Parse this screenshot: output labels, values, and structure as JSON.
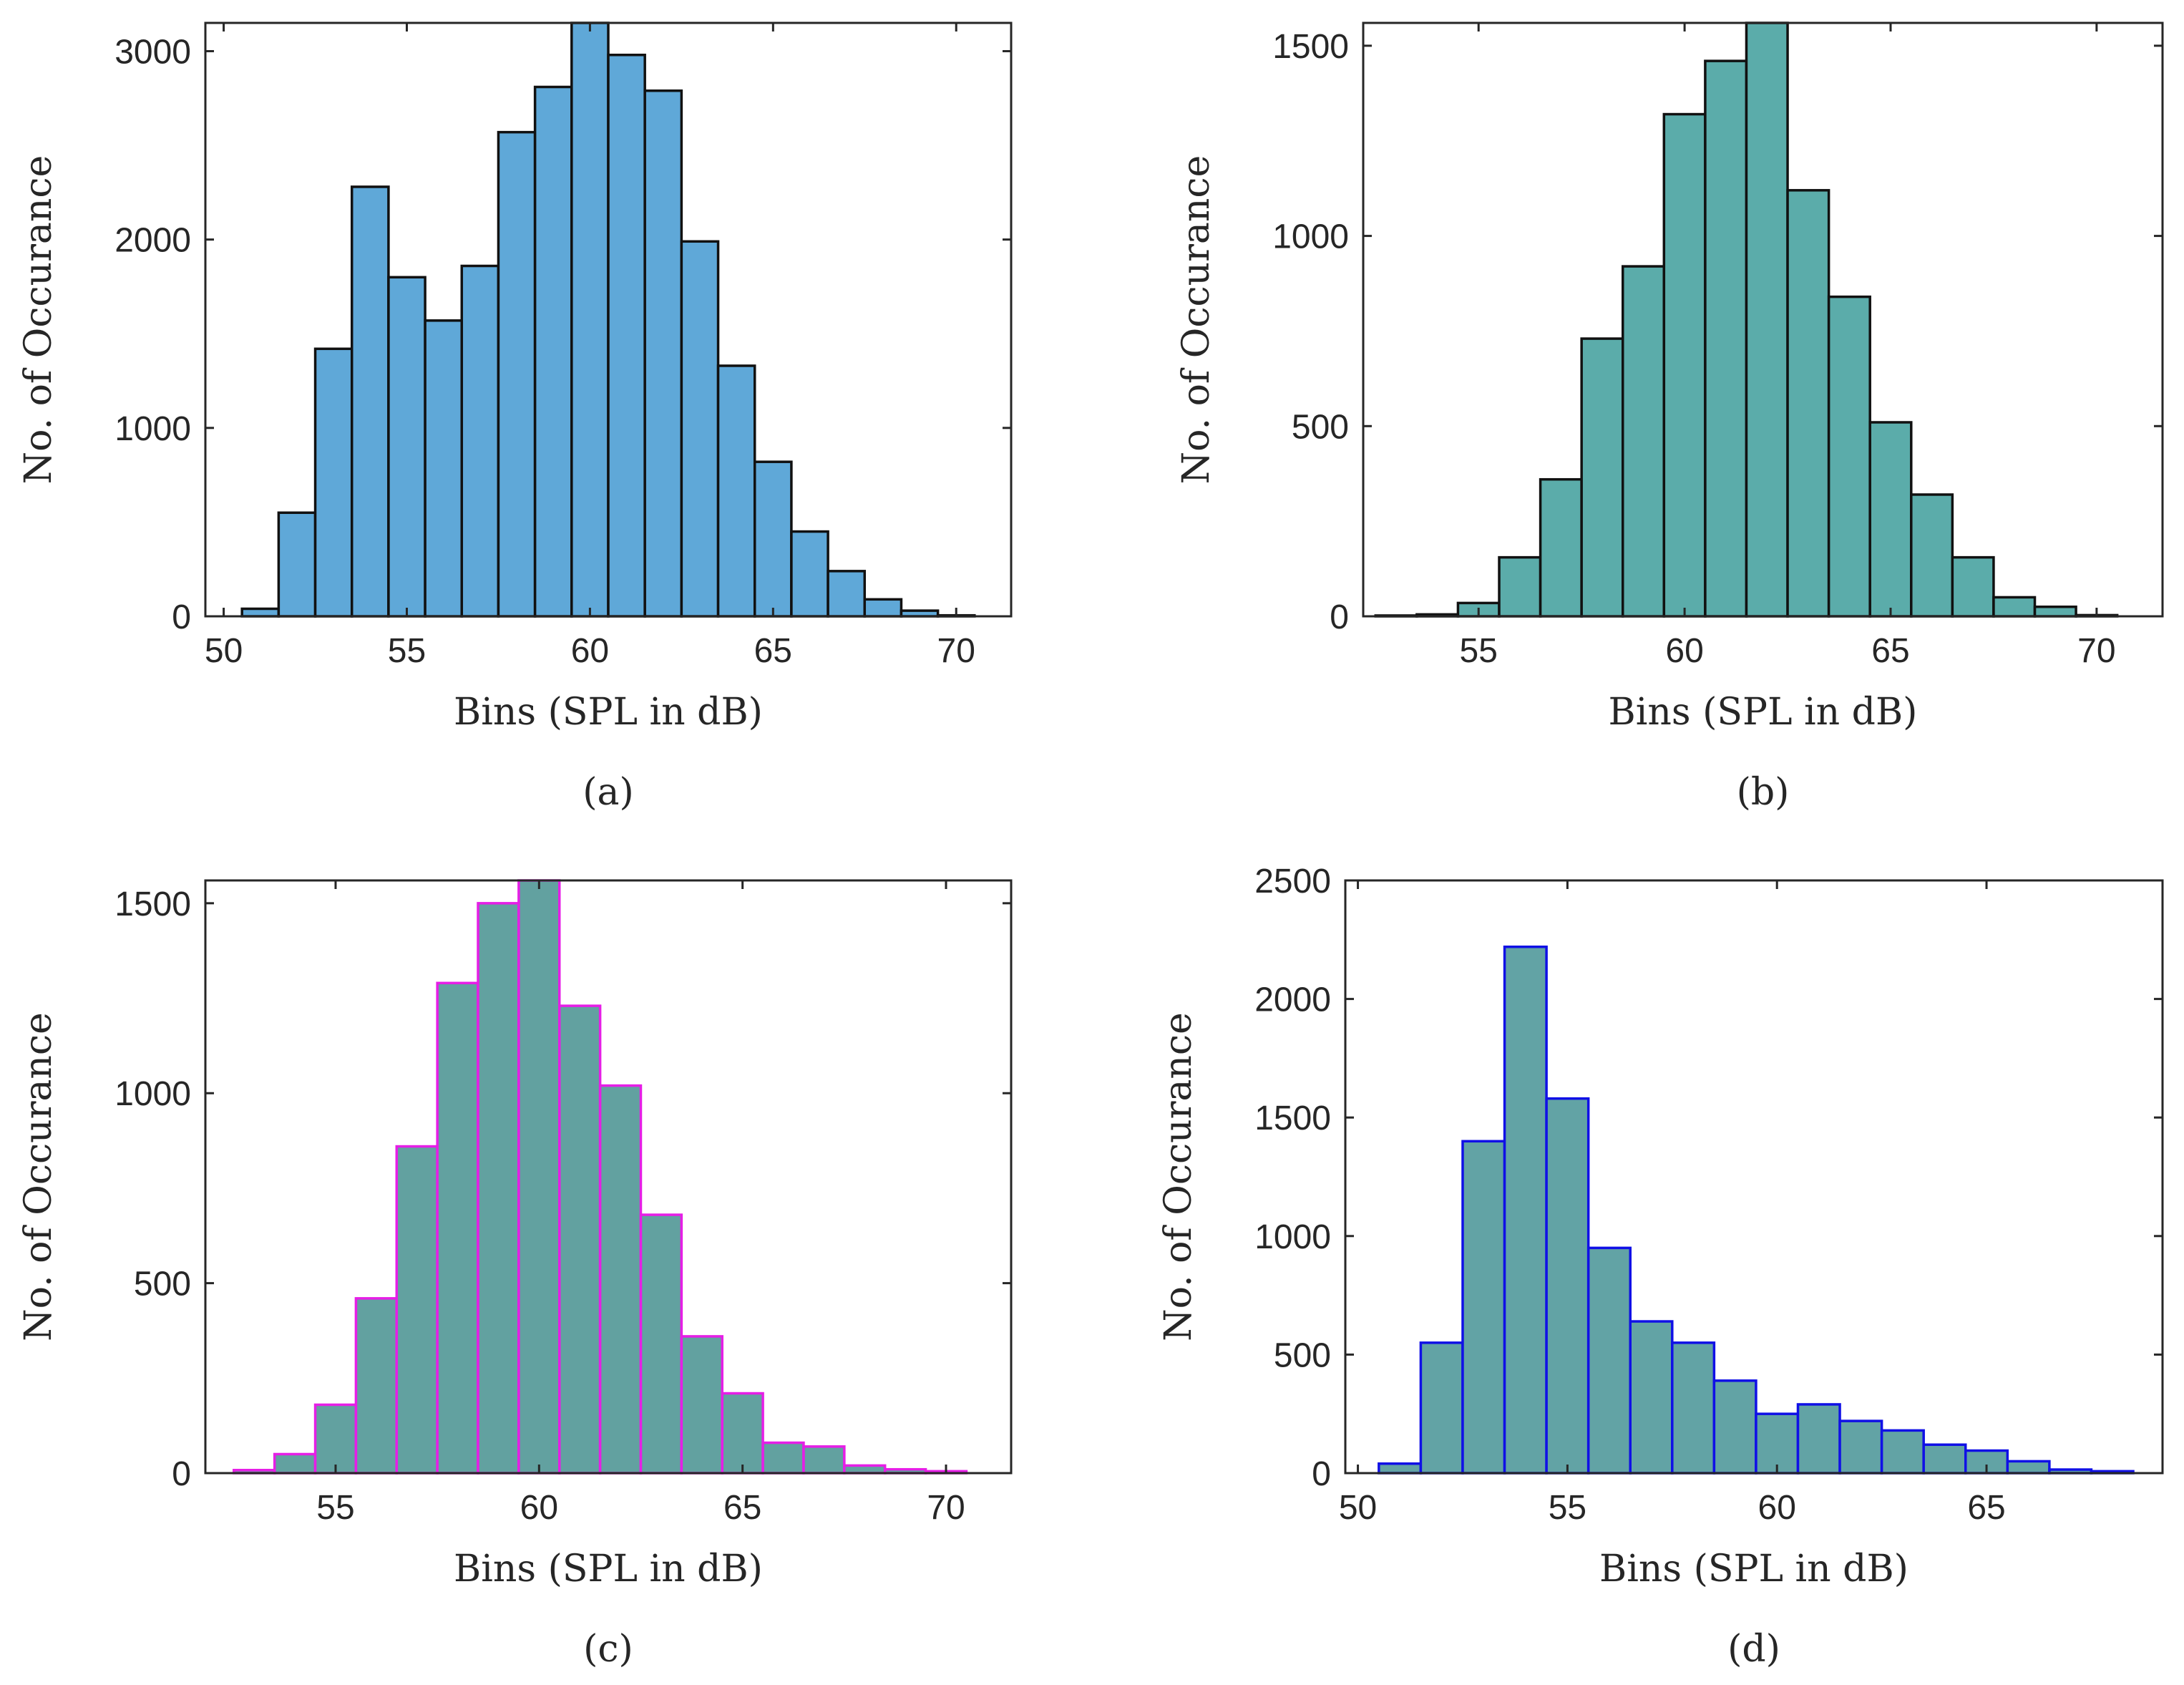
{
  "chart_data": [
    {
      "type": "bar",
      "panel": "a",
      "caption": "(a)",
      "xlabel": "Bins (SPL in dB)",
      "ylabel": "No. of Occurance",
      "xlim": [
        49.5,
        71.5
      ],
      "ylim": [
        0,
        3150
      ],
      "xticks": [
        50,
        55,
        60,
        65,
        70
      ],
      "yticks": [
        0,
        1000,
        2000,
        3000
      ],
      "bin_width": 1,
      "bin_starts": [
        50.5,
        51.5,
        52.5,
        53.5,
        54.5,
        55.5,
        56.5,
        57.5,
        58.5,
        59.5,
        60.5,
        61.5,
        62.5,
        63.5,
        64.5,
        65.5,
        66.5,
        67.5,
        68.5,
        69.5
      ],
      "values": [
        40,
        550,
        1420,
        2280,
        1800,
        1570,
        1860,
        2570,
        2810,
        3150,
        2980,
        2790,
        1990,
        1330,
        820,
        450,
        240,
        90,
        30,
        5
      ],
      "fill": "#5fa8d8",
      "edge": "#111111",
      "grid": false
    },
    {
      "type": "bar",
      "panel": "b",
      "caption": "(b)",
      "xlabel": "Bins (SPL in dB)",
      "ylabel": "No. of Occurance",
      "xlim": [
        52.2,
        71.6
      ],
      "ylim": [
        0,
        1560
      ],
      "xticks": [
        55,
        60,
        65,
        70
      ],
      "yticks": [
        0,
        500,
        1000,
        1500
      ],
      "bin_width": 1,
      "bin_starts": [
        52.5,
        53.5,
        54.5,
        55.5,
        56.5,
        57.5,
        58.5,
        59.5,
        60.5,
        61.5,
        62.5,
        63.5,
        64.5,
        65.5,
        66.5,
        67.5,
        68.5,
        69.5
      ],
      "values": [
        2,
        5,
        35,
        155,
        360,
        730,
        920,
        1320,
        1460,
        1560,
        1120,
        840,
        510,
        320,
        155,
        50,
        25,
        3
      ],
      "fill": "#5bacaa",
      "edge": "#111111",
      "grid": false
    },
    {
      "type": "bar",
      "panel": "c",
      "caption": "(c)",
      "xlabel": "Bins (SPL in dB)",
      "ylabel": "No. of Occurance",
      "xlim": [
        51.8,
        71.6
      ],
      "ylim": [
        0,
        1560
      ],
      "xticks": [
        55,
        60,
        65,
        70
      ],
      "yticks": [
        0,
        500,
        1000,
        1500
      ],
      "bin_width": 1,
      "bin_starts": [
        52.5,
        53.5,
        54.5,
        55.5,
        56.5,
        57.5,
        58.5,
        59.5,
        60.5,
        61.5,
        62.5,
        63.5,
        64.5,
        65.5,
        66.5,
        67.5,
        68.5,
        69.5
      ],
      "values": [
        8,
        50,
        180,
        460,
        860,
        1290,
        1500,
        1560,
        1230,
        1020,
        680,
        360,
        210,
        80,
        70,
        20,
        10,
        5
      ],
      "fill": "#62a1a0",
      "edge": "#e61ee6",
      "grid": false
    },
    {
      "type": "bar",
      "panel": "d",
      "caption": "(d)",
      "xlabel": "Bins (SPL in dB)",
      "ylabel": "No. of Occurance",
      "xlim": [
        49.7,
        69.2
      ],
      "ylim": [
        0,
        2500
      ],
      "xticks": [
        50,
        55,
        60,
        65
      ],
      "yticks": [
        0,
        500,
        1000,
        1500,
        2000,
        2500
      ],
      "bin_width": 1,
      "bin_starts": [
        50.5,
        51.5,
        52.5,
        53.5,
        54.5,
        55.5,
        56.5,
        57.5,
        58.5,
        59.5,
        60.5,
        61.5,
        62.5,
        63.5,
        64.5,
        65.5,
        66.5,
        67.5
      ],
      "values": [
        40,
        550,
        1400,
        2220,
        1580,
        950,
        640,
        550,
        390,
        250,
        290,
        220,
        180,
        120,
        95,
        50,
        15,
        8
      ],
      "fill": "#62a3a5",
      "edge": "#1010e6",
      "grid": false
    }
  ]
}
